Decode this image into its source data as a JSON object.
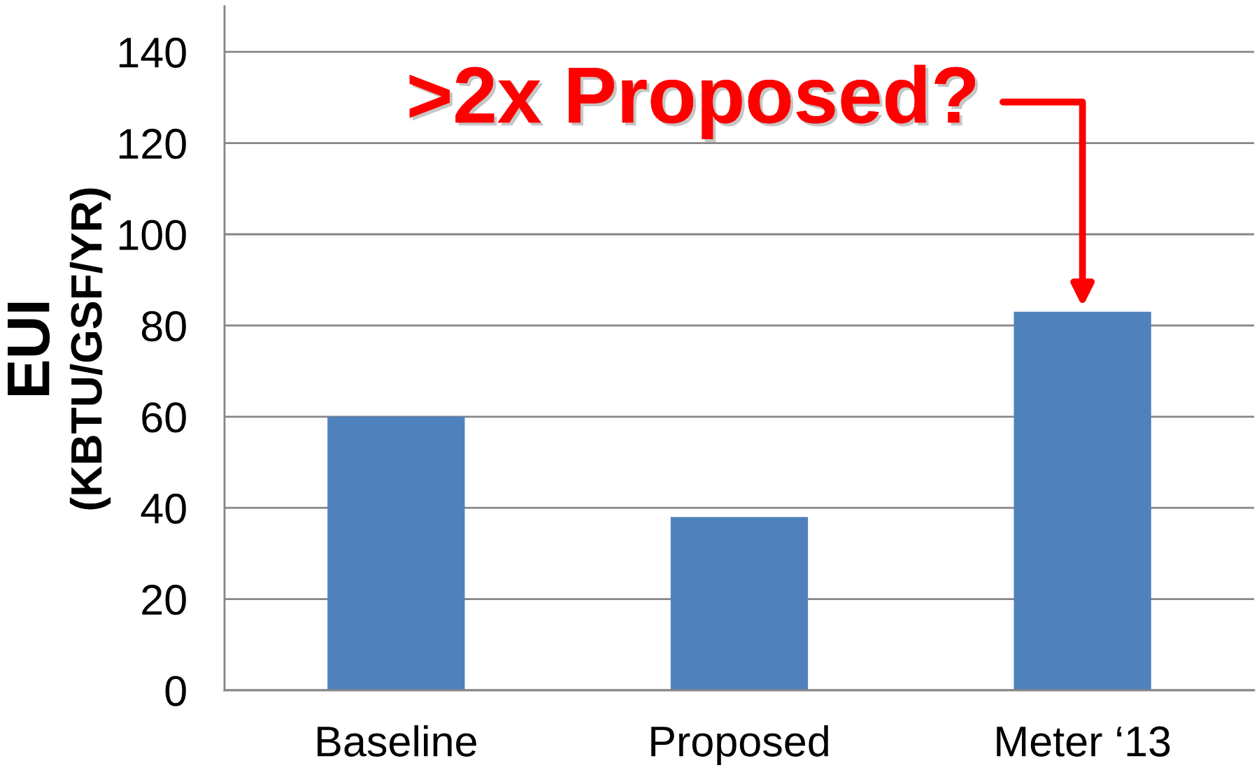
{
  "chart_data": {
    "type": "bar",
    "ylabel": "EUI\n(KBTU/GSF/YR)",
    "categories": [
      "Baseline",
      "Proposed",
      "Meter ‘13"
    ],
    "values": [
      60,
      38,
      83
    ],
    "color": "#4f81bd",
    "ylim": [
      0,
      150
    ],
    "yticks": [
      0,
      20,
      40,
      60,
      80,
      100,
      120,
      140
    ],
    "grid": "y",
    "annotations": [
      {
        "text": ">2x Proposed?",
        "x": "Meter ‘13",
        "y": 83
      }
    ]
  }
}
